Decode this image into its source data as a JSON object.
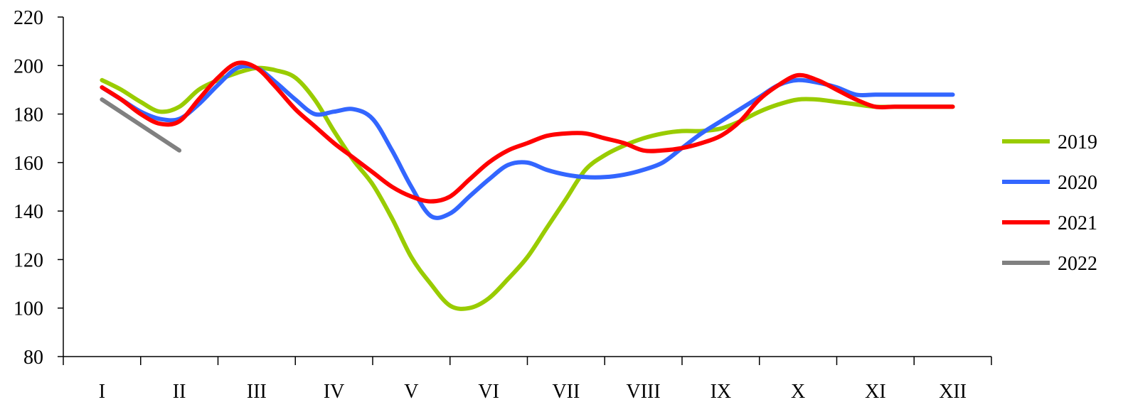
{
  "chart_data": {
    "type": "line",
    "title": "",
    "xlabel": "",
    "ylabel": "",
    "categories": [
      "I",
      "II",
      "III",
      "IV",
      "V",
      "VI",
      "VII",
      "VIII",
      "IX",
      "X",
      "XI",
      "XII"
    ],
    "ylim": [
      80,
      220
    ],
    "yticks": [
      "80",
      "100",
      "120",
      "140",
      "160",
      "180",
      "200",
      "220"
    ],
    "grid": false,
    "legend_position": "right",
    "series": [
      {
        "name": "2019",
        "color": "#99cc00",
        "x": [
          0,
          0.25,
          0.5,
          0.75,
          1,
          1.25,
          1.5,
          1.75,
          2,
          2.25,
          2.5,
          2.75,
          3,
          3.25,
          3.5,
          3.75,
          4,
          4.25,
          4.5,
          4.75,
          5,
          5.25,
          5.5,
          5.75,
          6,
          6.25,
          6.5,
          6.75,
          7,
          7.25,
          7.5,
          7.75,
          8,
          8.25,
          8.5,
          8.75,
          9,
          9.25,
          9.5,
          9.75,
          10,
          10.25,
          10.5,
          10.75,
          11
        ],
        "values": [
          194,
          190,
          185,
          181,
          183,
          190,
          194,
          197,
          199,
          198,
          195,
          186,
          173,
          161,
          151,
          137,
          121,
          110,
          101,
          100,
          104,
          112,
          121,
          133,
          145,
          157,
          163,
          167,
          170,
          172,
          173,
          173,
          174,
          177,
          181,
          184,
          186,
          186,
          185,
          184,
          183,
          183,
          183,
          183,
          183
        ]
      },
      {
        "name": "2020",
        "color": "#3366ff",
        "x": [
          0,
          0.25,
          0.5,
          0.75,
          1,
          1.25,
          1.5,
          1.75,
          2,
          2.25,
          2.5,
          2.75,
          3,
          3.25,
          3.5,
          3.75,
          4,
          4.25,
          4.5,
          4.75,
          5,
          5.25,
          5.5,
          5.75,
          6,
          6.25,
          6.5,
          6.75,
          7,
          7.25,
          7.5,
          7.75,
          8,
          8.25,
          8.5,
          8.75,
          9,
          9.25,
          9.5,
          9.75,
          10,
          10.25,
          10.5,
          10.75,
          11
        ],
        "values": [
          191,
          186,
          181,
          178,
          178,
          184,
          192,
          199,
          199,
          193,
          186,
          180,
          181,
          182,
          178,
          165,
          150,
          138,
          139,
          146,
          153,
          159,
          160,
          157,
          155,
          154,
          154,
          155,
          157,
          160,
          166,
          172,
          177,
          182,
          187,
          192,
          194,
          193,
          191,
          188,
          188,
          188,
          188,
          188,
          188
        ]
      },
      {
        "name": "2021",
        "color": "#ff0000",
        "x": [
          0,
          0.25,
          0.5,
          0.75,
          1,
          1.25,
          1.5,
          1.75,
          2,
          2.25,
          2.5,
          2.75,
          3,
          3.25,
          3.5,
          3.75,
          4,
          4.25,
          4.5,
          4.75,
          5,
          5.25,
          5.5,
          5.75,
          6,
          6.25,
          6.5,
          6.75,
          7,
          7.25,
          7.5,
          7.75,
          8,
          8.25,
          8.5,
          8.75,
          9,
          9.25,
          9.5,
          9.75,
          10,
          10.25,
          10.5,
          10.75,
          11
        ],
        "values": [
          191,
          186,
          180,
          176,
          177,
          186,
          195,
          201,
          199,
          191,
          182,
          175,
          168,
          162,
          156,
          150,
          146,
          144,
          146,
          153,
          160,
          165,
          168,
          171,
          172,
          172,
          170,
          168,
          165,
          165,
          166,
          168,
          171,
          177,
          186,
          192,
          196,
          194,
          190,
          186,
          183,
          183,
          183,
          183,
          183
        ]
      },
      {
        "name": "2022",
        "color": "#808080",
        "x": [
          0,
          1
        ],
        "values": [
          186,
          165
        ]
      }
    ]
  }
}
